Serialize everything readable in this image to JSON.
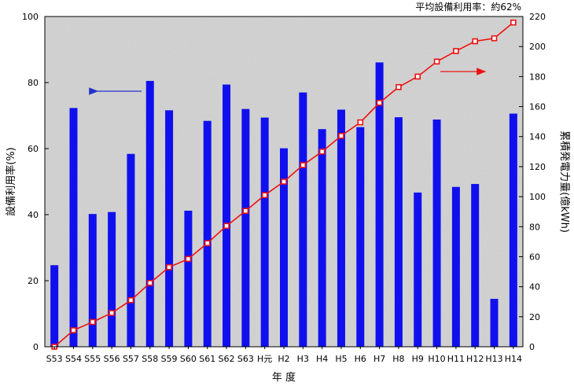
{
  "chart_data": {
    "type": "bar",
    "note": "平均設備利用率：約62%",
    "xlabel": "年 度",
    "ylabel": "設備利用率(%)",
    "y2label": "累積発電力量(億kWh)",
    "ylim": [
      0,
      100
    ],
    "y2lim": [
      0,
      220
    ],
    "yticks": [
      0,
      20,
      40,
      60,
      80,
      100
    ],
    "y2ticks": [
      0,
      20,
      40,
      60,
      80,
      100,
      120,
      140,
      160,
      180,
      200,
      220
    ],
    "categories": [
      "S53",
      "S54",
      "S55",
      "S56",
      "S57",
      "S58",
      "S59",
      "S60",
      "S61",
      "S62",
      "S63",
      "H元",
      "H2",
      "H3",
      "H4",
      "H5",
      "H6",
      "H7",
      "H8",
      "H9",
      "H10",
      "H11",
      "H12",
      "H13",
      "H14"
    ],
    "series": [
      {
        "type": "bar",
        "axis": "left",
        "values": [
          24.7,
          72.3,
          40.2,
          40.8,
          58.4,
          80.5,
          71.6,
          41.2,
          68.4,
          79.4,
          72.0,
          69.4,
          60.1,
          77.0,
          65.9,
          71.8,
          66.5,
          86.1,
          69.5,
          46.7,
          68.8,
          48.4,
          49.3,
          14.5,
          70.6
        ]
      },
      {
        "type": "line",
        "axis": "right",
        "values": [
          0,
          11,
          16.5,
          22.5,
          31,
          42.5,
          53,
          58.5,
          69,
          80.5,
          90.5,
          101,
          110,
          121,
          130,
          140.5,
          149.5,
          162.5,
          173,
          180,
          190,
          197,
          203.5,
          205.5,
          216
        ]
      }
    ],
    "colors": {
      "bar": "#1010ee",
      "line": "#ee1111",
      "plot_bg": "#d8d8d8"
    },
    "arrows": [
      {
        "points_to": "left-axis",
        "color": "#2233cc"
      },
      {
        "points_to": "right-axis",
        "color": "#ee1111"
      }
    ],
    "grid": false
  }
}
